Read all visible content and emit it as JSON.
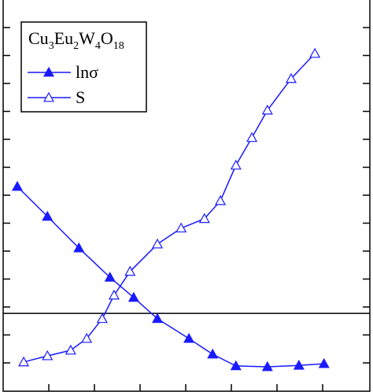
{
  "chart_data": {
    "type": "scatter-line",
    "legend_title": "Cu3Eu2W4O18",
    "legend": "top-left",
    "xlim": [
      0,
      8
    ],
    "ylim": [
      0,
      14
    ],
    "xticks": [
      1,
      2,
      3,
      4,
      5,
      6,
      7
    ],
    "yticks": [
      1,
      2,
      3,
      4,
      5,
      6,
      7,
      8,
      9,
      10,
      11,
      12,
      13
    ],
    "hline": 2.77,
    "series": [
      {
        "name": "lnσ",
        "color": "#1a1aff",
        "marker": "filled-triangle",
        "x": [
          0.31,
          0.97,
          1.66,
          2.34,
          2.86,
          3.38,
          4.07,
          4.59,
          5.1,
          5.79,
          6.48,
          7.03
        ],
        "values": [
          7.31,
          6.24,
          5.11,
          4.06,
          3.34,
          2.58,
          1.87,
          1.31,
          0.89,
          0.86,
          0.91,
          0.97
        ]
      },
      {
        "name": "S",
        "color": "#1a1aff",
        "marker": "open-triangle",
        "x": [
          0.45,
          0.97,
          1.48,
          1.83,
          2.17,
          2.43,
          2.78,
          3.38,
          3.9,
          4.41,
          4.76,
          5.1,
          5.45,
          5.79,
          6.31,
          6.83
        ],
        "values": [
          1.03,
          1.25,
          1.45,
          1.87,
          2.58,
          3.42,
          4.27,
          5.25,
          5.82,
          6.16,
          6.8,
          8.07,
          9.06,
          10.04,
          11.17,
          12.07
        ]
      }
    ]
  }
}
